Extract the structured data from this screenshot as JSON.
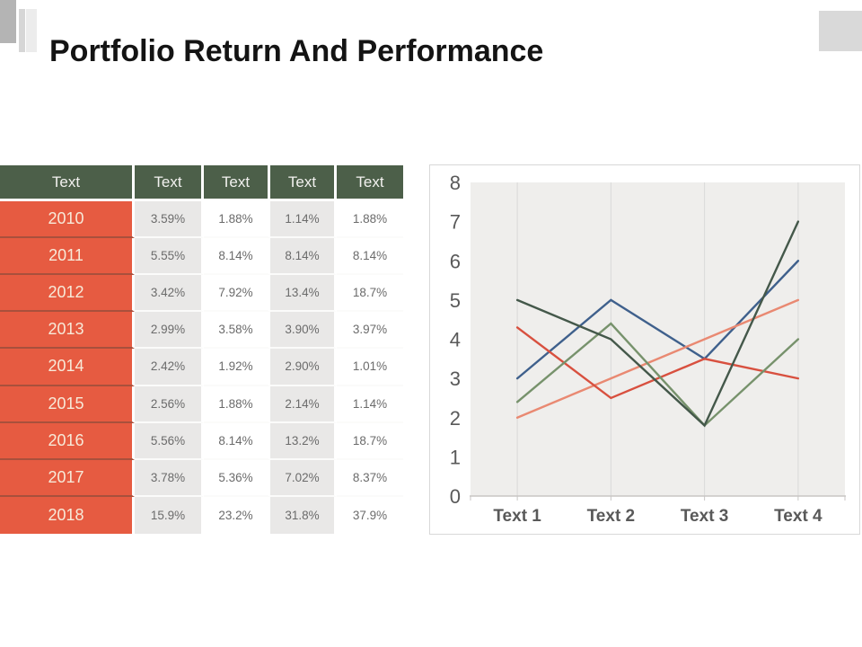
{
  "slide": {
    "title": "Portfolio Return And Performance"
  },
  "table": {
    "headers": [
      "Text",
      "Text",
      "Text",
      "Text",
      "Text"
    ],
    "rows": [
      {
        "year": "2010",
        "values": [
          "3.59%",
          "1.88%",
          "1.14%",
          "1.88%"
        ]
      },
      {
        "year": "2011",
        "values": [
          "5.55%",
          "8.14%",
          "8.14%",
          "8.14%"
        ]
      },
      {
        "year": "2012",
        "values": [
          "3.42%",
          "7.92%",
          "13.4%",
          "18.7%"
        ]
      },
      {
        "year": "2013",
        "values": [
          "2.99%",
          "3.58%",
          "3.90%",
          "3.97%"
        ]
      },
      {
        "year": "2014",
        "values": [
          "2.42%",
          "1.92%",
          "2.90%",
          "1.01%"
        ]
      },
      {
        "year": "2015",
        "values": [
          "2.56%",
          "1.88%",
          "2.14%",
          "1.14%"
        ]
      },
      {
        "year": "2016",
        "values": [
          "5.56%",
          "8.14%",
          "13.2%",
          "18.7%"
        ]
      },
      {
        "year": "2017",
        "values": [
          "3.78%",
          "5.36%",
          "7.02%",
          "8.37%"
        ]
      },
      {
        "year": "2018",
        "values": [
          "15.9%",
          "23.2%",
          "31.8%",
          "37.9%"
        ]
      }
    ]
  },
  "chart_data": {
    "type": "line",
    "x": [
      "Text 1",
      "Text 2",
      "Text 3",
      "Text 4"
    ],
    "series": [
      {
        "name": "series-blue",
        "color": "#3f608c",
        "values": [
          3,
          5,
          3.5,
          6
        ]
      },
      {
        "name": "series-salmon",
        "color": "#e98972",
        "values": [
          2,
          3,
          4,
          5
        ]
      },
      {
        "name": "series-red",
        "color": "#d8503f",
        "values": [
          4.3,
          2.5,
          3.5,
          3
        ]
      },
      {
        "name": "series-green",
        "color": "#77926c",
        "values": [
          2.4,
          4.4,
          1.8,
          4
        ]
      },
      {
        "name": "series-dark-green",
        "color": "#44584a",
        "values": [
          5,
          4,
          1.8,
          7
        ]
      }
    ],
    "ylim": [
      0,
      8
    ],
    "yticks": [
      0,
      1,
      2,
      3,
      4,
      5,
      6,
      7,
      8
    ],
    "grid": "vertical-only",
    "legend": "none",
    "title": "",
    "xlabel": "",
    "ylabel": ""
  },
  "colors": {
    "table_header_bg": "#4c5f49",
    "table_year_bg": "#e65b41",
    "table_alt_cell_bg": "#e9e8e7",
    "chart_plot_bg": "#efeeec",
    "chart_gridline": "#d9d9d9",
    "chart_axis_line": "#c8c6c4",
    "axis_text": "#595959",
    "title_text": "#141414",
    "decor_gray_dark": "#b4b4b4",
    "decor_gray_light": "#d9d9d9"
  }
}
